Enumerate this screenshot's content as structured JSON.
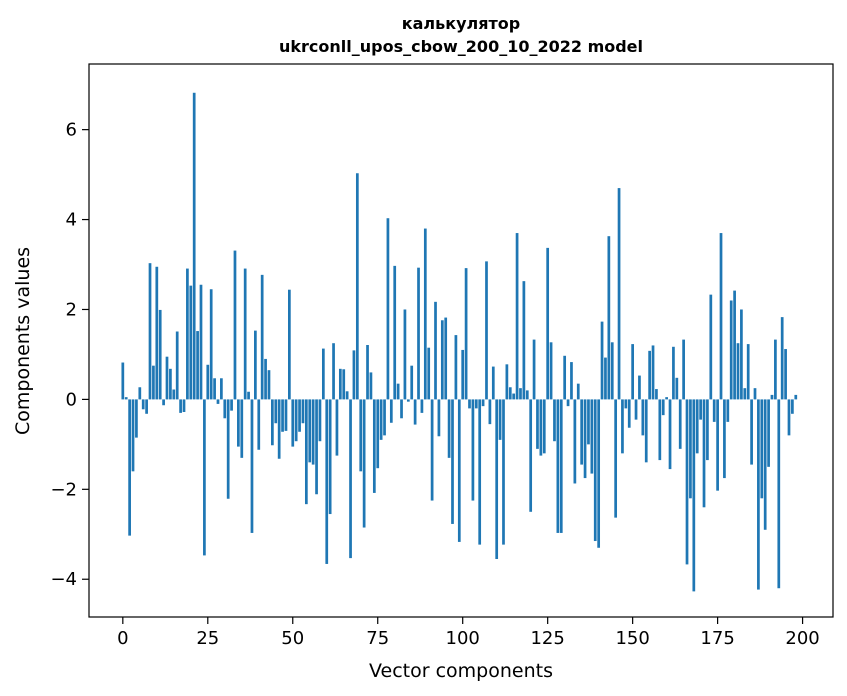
{
  "chart_data": {
    "type": "bar",
    "title_line1": "калькулятор",
    "title_line2": "ukrconll_upos_cbow_200_10_2022 model",
    "xlabel": "Vector components",
    "ylabel": "Components values",
    "xlim": [
      -9.95,
      208.95
    ],
    "ylim": [
      -4.84,
      7.46
    ],
    "xticks": [
      0,
      25,
      50,
      75,
      100,
      125,
      150,
      175,
      200
    ],
    "yticks": [
      -4,
      -2,
      0,
      2,
      4,
      6
    ],
    "ytick_labels": [
      "−4",
      "−2",
      "0",
      "2",
      "4",
      "6"
    ],
    "bar_color": "#1f77b4",
    "grid": false,
    "values": [
      0.82,
      0.05,
      -3.03,
      -1.6,
      -0.85,
      0.27,
      -0.22,
      -0.32,
      3.03,
      0.75,
      2.95,
      1.99,
      -0.13,
      0.95,
      0.68,
      0.22,
      1.51,
      -0.3,
      -0.28,
      2.91,
      2.53,
      6.82,
      1.52,
      2.55,
      -3.47,
      0.77,
      2.45,
      0.47,
      -0.1,
      0.47,
      -0.42,
      -2.21,
      -0.25,
      3.31,
      -1.05,
      -1.3,
      2.91,
      0.17,
      -2.97,
      1.53,
      -1.12,
      2.77,
      0.9,
      0.65,
      -1.02,
      -0.53,
      -1.32,
      -0.72,
      -0.7,
      2.44,
      -1.05,
      -0.93,
      -0.72,
      -0.53,
      -2.33,
      -1.4,
      -1.45,
      -2.11,
      -0.93,
      1.13,
      -3.66,
      -2.55,
      1.25,
      -1.25,
      0.68,
      0.67,
      0.18,
      -3.53,
      1.09,
      5.03,
      -1.6,
      -2.85,
      1.21,
      0.6,
      -2.08,
      -1.53,
      -0.9,
      -0.8,
      4.03,
      -0.52,
      2.97,
      0.35,
      -0.42,
      2.0,
      -0.05,
      0.75,
      -0.56,
      2.93,
      -0.3,
      3.8,
      1.15,
      -2.25,
      2.17,
      -0.82,
      1.76,
      1.82,
      -1.3,
      -2.77,
      1.43,
      -3.17,
      1.1,
      2.92,
      -0.2,
      -2.25,
      -0.2,
      -3.23,
      -0.15,
      3.07,
      -0.55,
      0.73,
      -3.55,
      -0.9,
      -3.23,
      0.78,
      0.27,
      0.13,
      3.7,
      0.25,
      2.63,
      0.2,
      -2.5,
      1.33,
      -1.1,
      -1.25,
      -1.2,
      3.37,
      1.27,
      -0.93,
      -2.97,
      -2.97,
      0.97,
      -0.15,
      0.83,
      -1.87,
      0.35,
      -1.45,
      -1.75,
      -1.0,
      -1.65,
      -3.15,
      -3.3,
      1.73,
      0.93,
      3.63,
      1.27,
      -2.63,
      4.7,
      -1.2,
      -0.2,
      -0.63,
      1.23,
      -0.45,
      0.53,
      -0.8,
      -1.4,
      1.08,
      1.2,
      0.23,
      -1.35,
      -0.35,
      0.05,
      -1.55,
      1.17,
      0.48,
      -1.1,
      1.33,
      -3.67,
      -2.2,
      -4.27,
      -1.2,
      -0.45,
      -2.4,
      -1.35,
      2.33,
      -0.5,
      -2.03,
      3.7,
      -1.75,
      -0.5,
      2.2,
      2.42,
      1.25,
      2.0,
      0.25,
      1.23,
      -1.45,
      0.25,
      -4.23,
      -2.2,
      -2.9,
      -1.5,
      0.1,
      1.33,
      -4.2,
      1.83,
      1.12,
      -0.8,
      -0.32,
      0.1
    ]
  }
}
